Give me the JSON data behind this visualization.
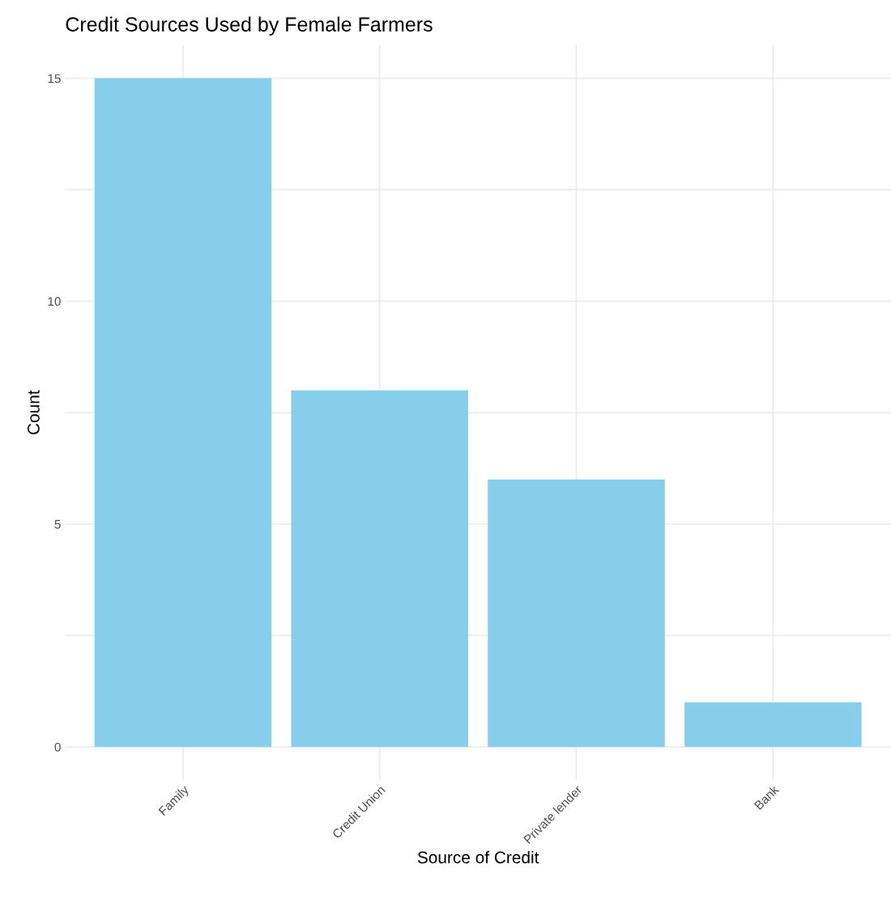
{
  "chart_data": {
    "type": "bar",
    "title": "Credit Sources Used by Female Farmers",
    "xlabel": "Source of Credit",
    "ylabel": "Count",
    "categories": [
      "Family",
      "Credit Union",
      "Private lender",
      "Bank"
    ],
    "values": [
      15,
      8,
      6,
      1
    ],
    "color": "#87ceeb",
    "ylim": [
      -0.75,
      15.75
    ],
    "yticks": [
      0,
      {
        "value": 2.5,
        "label": null
      },
      5,
      {
        "value": 7.5,
        "label": null
      },
      10,
      {
        "value": 12.5,
        "label": null
      },
      15
    ],
    "grid": true
  }
}
